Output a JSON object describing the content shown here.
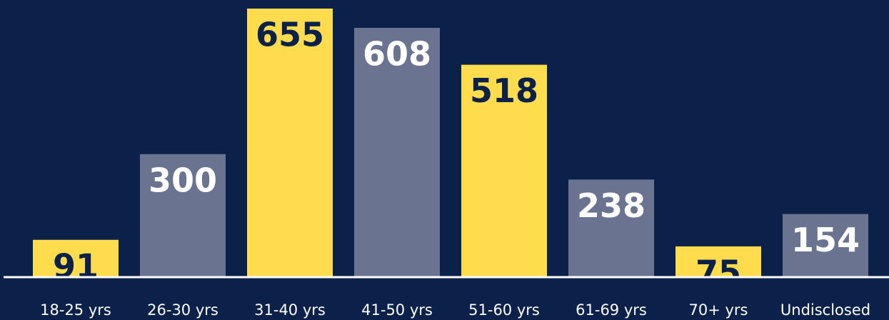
{
  "chart_data": {
    "type": "bar",
    "categories": [
      "18-25 yrs",
      "26-30 yrs",
      "31-40 yrs",
      "41-50 yrs",
      "51-60 yrs",
      "61-69 yrs",
      "70+ yrs",
      "Undisclosed"
    ],
    "values": [
      91,
      300,
      655,
      608,
      518,
      238,
      75,
      154
    ],
    "colors": [
      "#ffdc4e",
      "#6a7491",
      "#ffdc4e",
      "#6a7491",
      "#ffdc4e",
      "#6a7491",
      "#ffdc4e",
      "#6a7491"
    ]
  }
}
